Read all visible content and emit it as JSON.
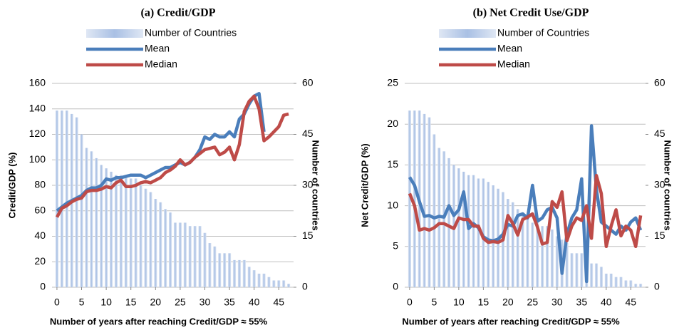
{
  "chart_data": [
    {
      "type": "combo",
      "title": "(a) Credit/GDP",
      "x_label": "Number of years after reaching Credit/GDP ≈ 55%",
      "y_label": "Credit/GDP (%)",
      "y2_label": "Number of countries",
      "x": [
        0,
        1,
        2,
        3,
        4,
        5,
        6,
        7,
        8,
        9,
        10,
        11,
        12,
        13,
        14,
        15,
        16,
        17,
        18,
        19,
        20,
        21,
        22,
        23,
        24,
        25,
        26,
        27,
        28,
        29,
        30,
        31,
        32,
        33,
        34,
        35,
        36,
        37,
        38,
        39,
        40,
        41,
        42,
        43,
        44,
        45,
        46,
        47
      ],
      "xlim": [
        -1,
        48
      ],
      "xticks": [
        0,
        5,
        10,
        15,
        20,
        25,
        30,
        35,
        40,
        45
      ],
      "ylim": [
        0,
        160
      ],
      "yticks": [
        0,
        20,
        40,
        60,
        80,
        100,
        120,
        140,
        160
      ],
      "y2lim": [
        0,
        60
      ],
      "y2ticks": [
        0,
        15,
        30,
        45,
        60
      ],
      "grid": true,
      "legend": "top",
      "series": [
        {
          "name": "Number of Countries",
          "type": "bar",
          "axis": "y2",
          "color": "#b9cbe8",
          "values": [
            52,
            52,
            52,
            51,
            50,
            45,
            41,
            40,
            38,
            36,
            35,
            34,
            33,
            33,
            33,
            32,
            32,
            30,
            29,
            28,
            26,
            25,
            23,
            22,
            19,
            19,
            19,
            18,
            18,
            18,
            16,
            13,
            12,
            10,
            10,
            10,
            8,
            8,
            8,
            6,
            5,
            4,
            4,
            3,
            2,
            2,
            2,
            1
          ]
        },
        {
          "name": "Mean",
          "type": "line",
          "color": "#4a7ebb",
          "values": [
            60,
            63,
            66,
            68,
            70,
            72,
            76,
            78,
            78,
            80,
            85,
            84,
            86,
            86,
            87,
            88,
            88,
            88,
            86,
            88,
            90,
            92,
            94,
            94,
            96,
            98,
            96,
            98,
            102,
            108,
            118,
            116,
            120,
            118,
            118,
            122,
            118,
            132,
            136,
            144,
            150,
            152,
            122,
            null,
            null,
            null,
            null,
            null
          ]
        },
        {
          "name": "Median",
          "type": "line",
          "color": "#be4b48",
          "values": [
            55,
            62,
            64,
            67,
            69,
            70,
            75,
            76,
            76,
            77,
            79,
            78,
            82,
            84,
            79,
            79,
            80,
            82,
            83,
            82,
            84,
            86,
            90,
            92,
            95,
            100,
            96,
            98,
            102,
            105,
            108,
            109,
            110,
            104,
            106,
            110,
            100,
            112,
            138,
            146,
            150,
            140,
            115,
            118,
            122,
            126,
            135,
            136
          ]
        }
      ]
    },
    {
      "type": "combo",
      "title": "(b) Net Credit Use/GDP",
      "x_label": "Number of years after reaching Credit/GDP ≈ 55%",
      "y_label": "Net Credit/GDP (%)",
      "y2_label": "Number of countries",
      "x": [
        0,
        1,
        2,
        3,
        4,
        5,
        6,
        7,
        8,
        9,
        10,
        11,
        12,
        13,
        14,
        15,
        16,
        17,
        18,
        19,
        20,
        21,
        22,
        23,
        24,
        25,
        26,
        27,
        28,
        29,
        30,
        31,
        32,
        33,
        34,
        35,
        36,
        37,
        38,
        39,
        40,
        41,
        42,
        43,
        44,
        45,
        46,
        47
      ],
      "xlim": [
        -1,
        48
      ],
      "xticks": [
        0,
        5,
        10,
        15,
        20,
        25,
        30,
        35,
        40,
        45
      ],
      "ylim": [
        0,
        25
      ],
      "yticks": [
        0,
        5,
        10,
        15,
        20,
        25
      ],
      "y2lim": [
        0,
        60
      ],
      "y2ticks": [
        0,
        15,
        30,
        45,
        60
      ],
      "grid": true,
      "legend": "top",
      "series": [
        {
          "name": "Number of Countries",
          "type": "bar",
          "axis": "y2",
          "color": "#b9cbe8",
          "values": [
            52,
            52,
            52,
            51,
            50,
            45,
            41,
            40,
            38,
            36,
            35,
            34,
            33,
            33,
            32,
            32,
            31,
            30,
            29,
            28,
            26,
            25,
            23,
            22,
            21,
            19,
            19,
            18,
            18,
            17,
            15,
            14,
            13,
            10,
            10,
            10,
            8,
            7,
            7,
            6,
            4,
            4,
            3,
            3,
            2,
            2,
            1,
            1
          ]
        },
        {
          "name": "Mean",
          "type": "line",
          "color": "#4a7ebb",
          "values": [
            13.5,
            12.5,
            10.5,
            8.7,
            8.8,
            8.5,
            8.7,
            8.6,
            10,
            8.8,
            9.5,
            11.7,
            7.2,
            7.8,
            7.3,
            6.2,
            5.8,
            5.7,
            5.9,
            6.5,
            7.7,
            7.5,
            8.8,
            9,
            8.5,
            12.5,
            8.1,
            8.5,
            9.5,
            9.8,
            8.5,
            1.7,
            6.5,
            8.5,
            9.5,
            13.3,
            0.7,
            19.8,
            12,
            8,
            7.5,
            7,
            6.5,
            7.5,
            7,
            8,
            8.5,
            7
          ]
        },
        {
          "name": "Median",
          "type": "line",
          "color": "#be4b48",
          "values": [
            11.5,
            10,
            7,
            7.2,
            7,
            7.3,
            7.8,
            7.8,
            7.5,
            7.2,
            8.5,
            8.3,
            8.3,
            7.5,
            7.5,
            6,
            5.5,
            5.6,
            5.5,
            5.8,
            8.8,
            7.8,
            6.4,
            8.3,
            8.6,
            9,
            7.4,
            5.3,
            5.5,
            10.5,
            9.8,
            11.7,
            5.7,
            7.5,
            8.5,
            8.2,
            10,
            6,
            13.7,
            11.5,
            5,
            7.5,
            9.5,
            6.3,
            7.5,
            7,
            5,
            8.8
          ]
        }
      ]
    }
  ]
}
